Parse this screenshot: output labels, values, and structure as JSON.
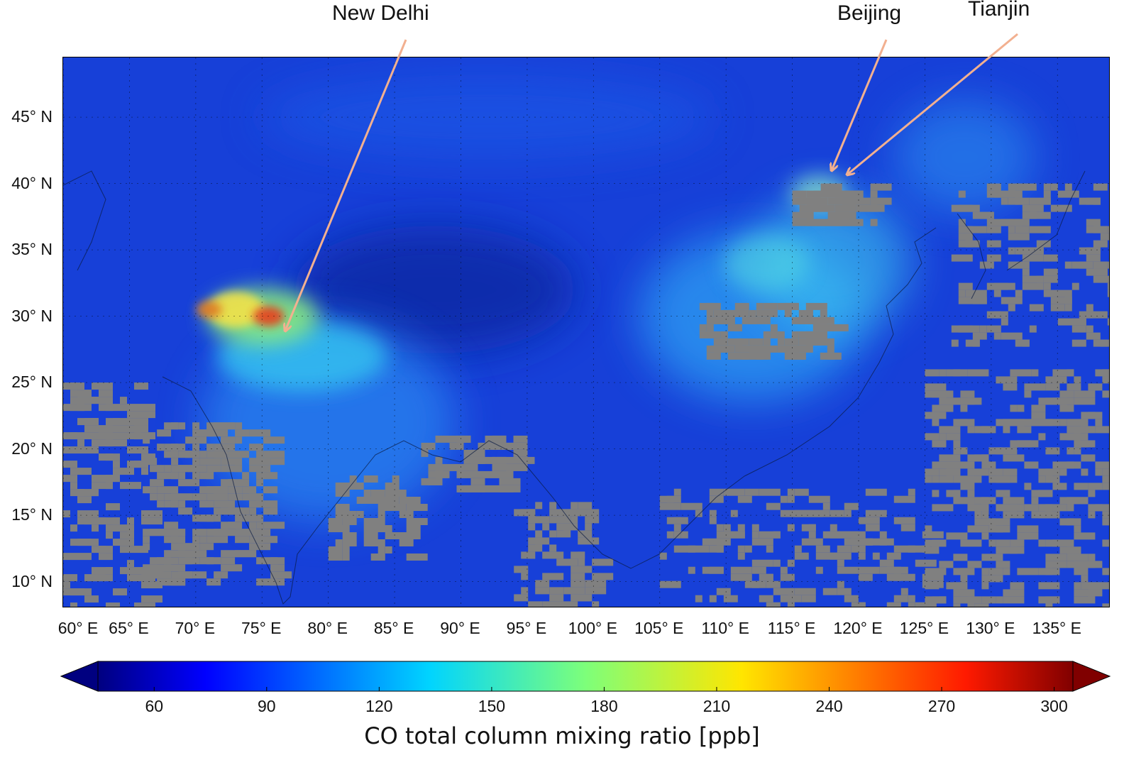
{
  "map": {
    "lat_ticks": [
      "45° N",
      "40° N",
      "35° N",
      "30° N",
      "25° N",
      "20° N",
      "15° N",
      "10° N"
    ],
    "lon_ticks": [
      "60° E",
      "65° E",
      "70° E",
      "75° E",
      "80° E",
      "85° E",
      "90° E",
      "95° E",
      "100° E",
      "105° E",
      "110° E",
      "115° E",
      "120° E",
      "125° E",
      "130° E",
      "135° E"
    ],
    "extent": {
      "lon": [
        60,
        139
      ],
      "lat": [
        8,
        49.5
      ]
    },
    "no_data_color": "#808080",
    "background_color": "#1a3fd9"
  },
  "annotations": [
    {
      "name": "New Delhi",
      "lon": 77.2,
      "lat": 28.6
    },
    {
      "name": "Beijing",
      "lon": 116.4,
      "lat": 39.9
    },
    {
      "name": "Tianjin",
      "lon": 117.2,
      "lat": 39.1
    }
  ],
  "annotation_color": "#f2b090",
  "colorbar": {
    "ticks": [
      "60",
      "90",
      "120",
      "150",
      "180",
      "210",
      "240",
      "270",
      "300"
    ],
    "range": [
      45,
      305
    ],
    "colormap": "jet",
    "extend": "both",
    "label": "CO total column mixing ratio [ppb]"
  }
}
